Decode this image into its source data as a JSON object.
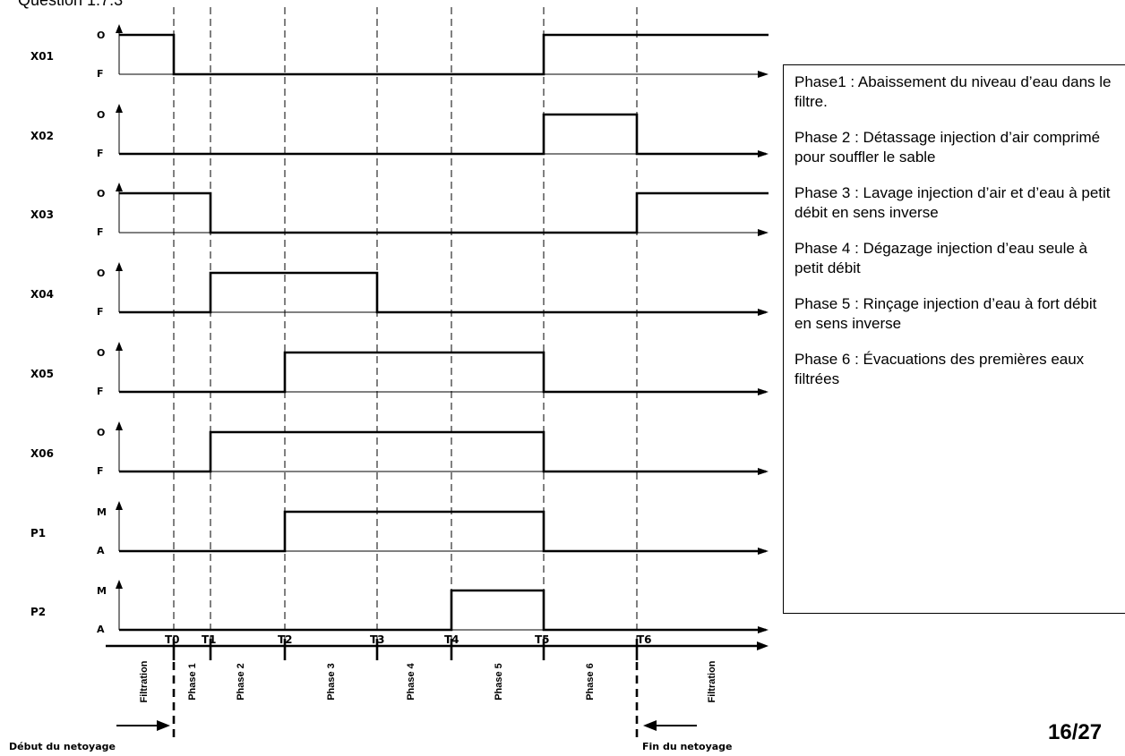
{
  "header": "Question 1.7.3",
  "page_number": "16/27",
  "signals": [
    {
      "name": "X01",
      "on_label": "O",
      "off_label": "F",
      "segments": [
        [
          "start",
          "T0",
          1
        ],
        [
          "T0",
          "T5",
          0
        ],
        [
          "T5",
          "end",
          1
        ]
      ]
    },
    {
      "name": "X02",
      "on_label": "O",
      "off_label": "F",
      "segments": [
        [
          "start",
          "T5",
          0
        ],
        [
          "T5",
          "T6",
          1
        ],
        [
          "T6",
          "end",
          0
        ]
      ]
    },
    {
      "name": "X03",
      "on_label": "O",
      "off_label": "F",
      "segments": [
        [
          "start",
          "T1",
          1
        ],
        [
          "T1",
          "T6",
          0
        ],
        [
          "T6",
          "end",
          1
        ]
      ]
    },
    {
      "name": "X04",
      "on_label": "O",
      "off_label": "F",
      "segments": [
        [
          "start",
          "T1",
          0
        ],
        [
          "T1",
          "T3",
          1
        ],
        [
          "T3",
          "end",
          0
        ]
      ]
    },
    {
      "name": "X05",
      "on_label": "O",
      "off_label": "F",
      "segments": [
        [
          "start",
          "T2",
          0
        ],
        [
          "T2",
          "T5",
          1
        ],
        [
          "T5",
          "end",
          0
        ]
      ]
    },
    {
      "name": "X06",
      "on_label": "O",
      "off_label": "F",
      "segments": [
        [
          "start",
          "T1",
          0
        ],
        [
          "T1",
          "T5",
          1
        ],
        [
          "T5",
          "end",
          0
        ]
      ]
    },
    {
      "name": "P1",
      "on_label": "M",
      "off_label": "A",
      "segments": [
        [
          "start",
          "T2",
          0
        ],
        [
          "T2",
          "T5",
          1
        ],
        [
          "T5",
          "end",
          0
        ]
      ]
    },
    {
      "name": "P2",
      "on_label": "M",
      "off_label": "A",
      "segments": [
        [
          "start",
          "T4",
          0
        ],
        [
          "T4",
          "T5",
          1
        ],
        [
          "T5",
          "end",
          0
        ]
      ]
    }
  ],
  "time_marks": [
    "T0",
    "T1",
    "T2",
    "T3",
    "T4",
    "T5",
    "T6"
  ],
  "phases": [
    "Filtration",
    "Phase 1",
    "Phase 2",
    "Phase 3",
    "Phase 4",
    "Phase 5",
    "Phase 6",
    "Filtration"
  ],
  "start_label": "Début du netoyage",
  "end_label": "Fin du netoyage",
  "descriptions": [
    "Phase1 : Abaissement du niveau d’eau dans le filtre.",
    "Phase 2 : Détassage injection d’air comprimé pour souffler le sable",
    "Phase 3 : Lavage injection d’air et d’eau à petit débit en sens inverse",
    "Phase 4 : Dégazage injection d’eau seule à petit débit",
    "Phase 5 : Rinçage injection d’eau à fort débit en sens inverse",
    "Phase 6 : Évacuations des premières eaux filtrées"
  ]
}
